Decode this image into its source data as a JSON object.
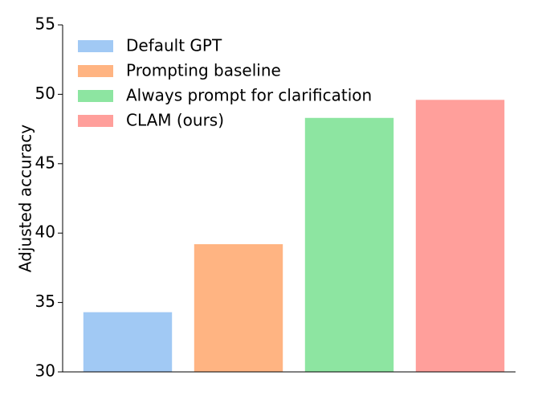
{
  "chart_data": {
    "type": "bar",
    "ylabel": "Adjusted accuracy",
    "series": [
      {
        "name": "Default GPT",
        "color": "#a1c9f4",
        "values": [
          34.3
        ]
      },
      {
        "name": "Prompting baseline",
        "color": "#ffb482",
        "values": [
          39.2
        ]
      },
      {
        "name": "Always prompt for clarification",
        "color": "#8de5a1",
        "values": [
          48.3
        ]
      },
      {
        "name": "CLAM (ours)",
        "color": "#ff9f9b",
        "values": [
          49.6
        ]
      }
    ],
    "ylim": [
      30,
      55
    ],
    "yticks": [
      30,
      35,
      40,
      45,
      50,
      55
    ],
    "legend": "upper left",
    "grid": false
  }
}
